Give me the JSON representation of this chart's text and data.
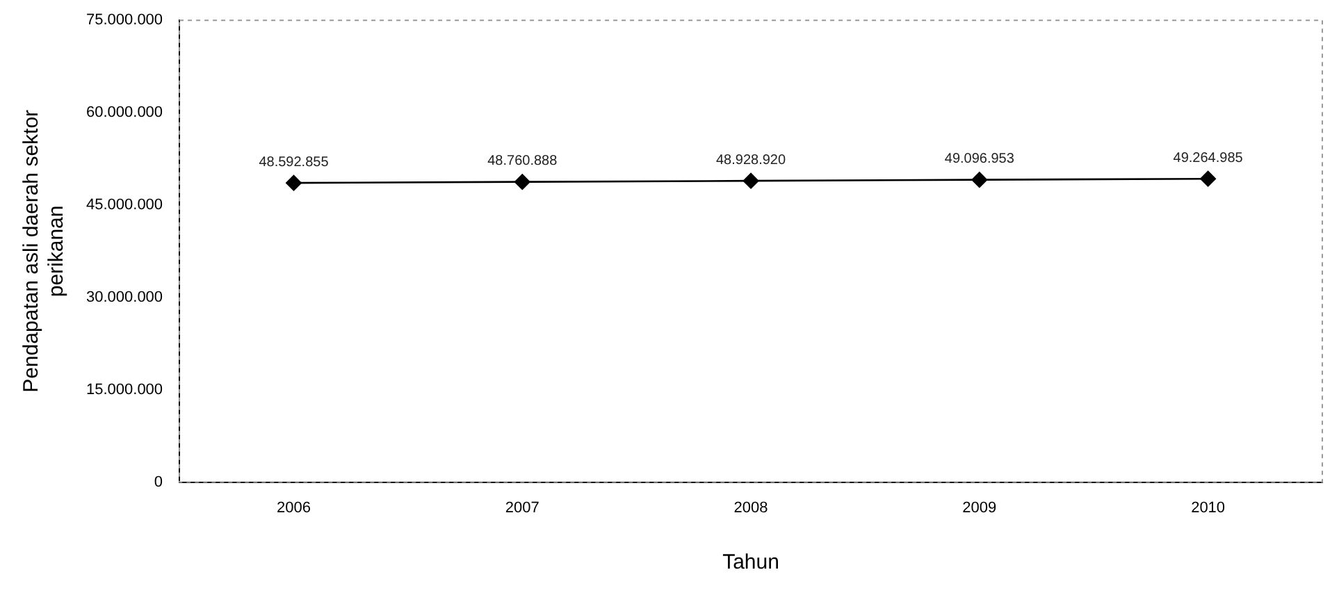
{
  "chart_data": {
    "type": "line",
    "xlabel": "Tahun",
    "ylabel": "Pendapatan asli daerah sektor perikanan",
    "categories": [
      "2006",
      "2007",
      "2008",
      "2009",
      "2010"
    ],
    "series": [
      {
        "color": "#000000",
        "values": [
          48592855,
          48760888,
          48928920,
          49096953,
          49264985
        ],
        "value_labels": [
          "48.592.855",
          "48.760.888",
          "48.928.920",
          "49.096.953",
          "49.264.985"
        ]
      }
    ],
    "ylim": [
      0,
      75000000
    ],
    "yticks": [
      {
        "value": 0,
        "label": "0"
      },
      {
        "value": 15000000,
        "label": "15.000.000"
      },
      {
        "value": 30000000,
        "label": "30.000.000"
      },
      {
        "value": 45000000,
        "label": "45.000.000"
      },
      {
        "value": 60000000,
        "label": "60.000.000"
      },
      {
        "value": 75000000,
        "label": "75.000.000"
      }
    ],
    "grid": false,
    "legend": false,
    "marker": "diamond",
    "line_style": "solid"
  }
}
